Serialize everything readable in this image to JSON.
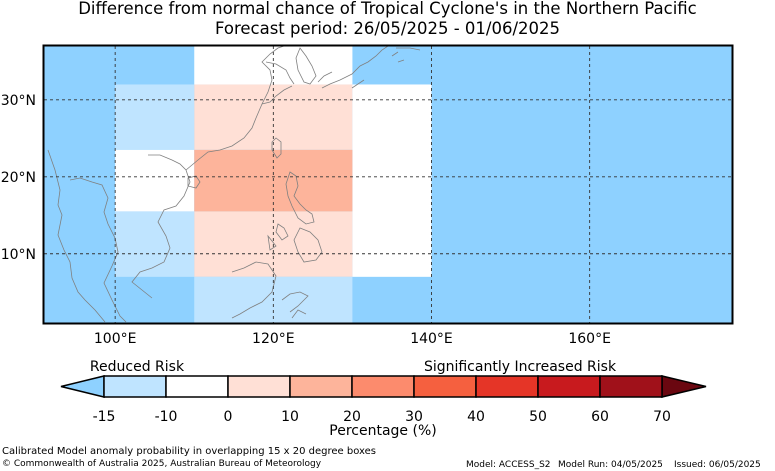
{
  "title_line1": "Difference from normal chance of Tropical Cyclone's in the Northern Pacific",
  "title_line2": "Forecast period: 26/05/2025 - 01/06/2025",
  "map": {
    "lon_range": [
      91,
      178
    ],
    "lat_range": [
      1,
      37
    ],
    "lat_ticks": [
      {
        "value": 30,
        "label": "30°N"
      },
      {
        "value": 20,
        "label": "20°N"
      },
      {
        "value": 10,
        "label": "10°N"
      }
    ],
    "lon_ticks": [
      {
        "value": 100,
        "label": "100°E"
      },
      {
        "value": 120,
        "label": "120°E"
      },
      {
        "value": 140,
        "label": "140°E"
      },
      {
        "value": 160,
        "label": "160°E"
      }
    ],
    "background_color": "#8ed1ff",
    "land_outline_color": "#808080",
    "grid_cells": [
      {
        "lon": [
          110,
          130
        ],
        "lat": [
          32,
          37
        ],
        "bin": 1
      },
      {
        "lon": [
          100,
          110
        ],
        "lat": [
          23.5,
          32
        ],
        "bin": 0
      },
      {
        "lon": [
          110,
          130
        ],
        "lat": [
          23.5,
          32
        ],
        "bin": 2
      },
      {
        "lon": [
          130,
          140
        ],
        "lat": [
          7,
          32
        ],
        "bin": 1
      },
      {
        "lon": [
          100,
          110
        ],
        "lat": [
          15.5,
          23.5
        ],
        "bin": 1
      },
      {
        "lon": [
          110,
          130
        ],
        "lat": [
          15.5,
          23.5
        ],
        "bin": 3
      },
      {
        "lon": [
          100,
          110
        ],
        "lat": [
          7,
          15.5
        ],
        "bin": 0
      },
      {
        "lon": [
          110,
          130
        ],
        "lat": [
          7,
          15.5
        ],
        "bin": 2
      },
      {
        "lon": [
          110,
          130
        ],
        "lat": [
          1,
          7
        ],
        "bin": 0
      }
    ]
  },
  "colorbar": {
    "label_left": "Reduced Risk",
    "label_right": "Significantly Increased Risk",
    "ticks": [
      "-15",
      "-10",
      "0",
      "10",
      "20",
      "30",
      "40",
      "50",
      "60",
      "70"
    ],
    "colors": [
      "#bfe4ff",
      "#ffffff",
      "#ffe0d6",
      "#fdb49b",
      "#fc8b6d",
      "#f5603f",
      "#e53527",
      "#c81a1e",
      "#a0111a"
    ],
    "under_color": "#8ed1ff",
    "over_color": "#6a0710",
    "xlabel": "Percentage (%)"
  },
  "footer": {
    "note": "Calibrated Model anomaly probability in overlapping 15 x 20 degree boxes",
    "copyright": "© Commonwealth of Australia 2025, Australian Bureau of Meteorology",
    "model": "Model: ACCESS_S2",
    "model_run": "Model Run: 04/05/2025",
    "issued": "Issued: 06/05/2025"
  }
}
